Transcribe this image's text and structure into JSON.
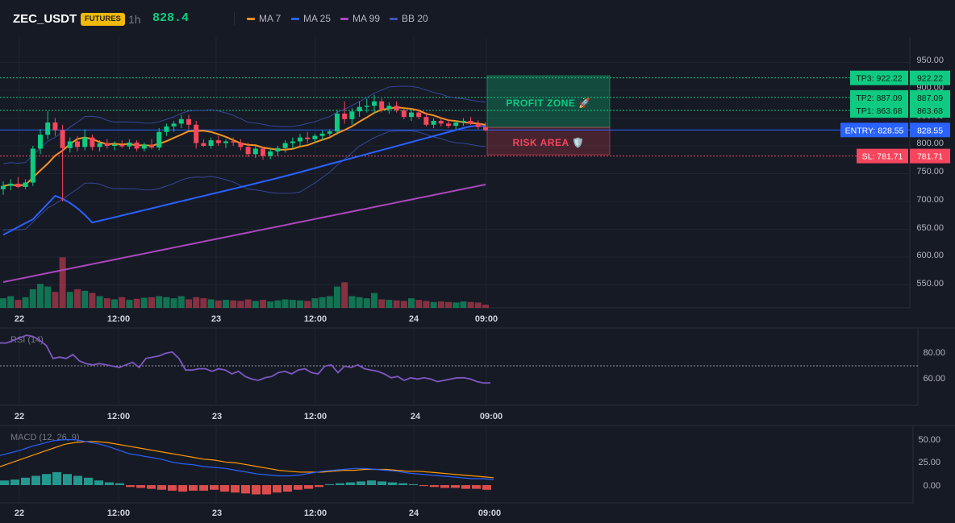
{
  "header": {
    "symbol": "ZEC_USDT",
    "badge": "FUTURES",
    "timeframe": "1h",
    "last_price": "828.4",
    "indicators": [
      {
        "label": "MA 7",
        "color": "#f7931a"
      },
      {
        "label": "MA 25",
        "color": "#2962ff"
      },
      {
        "label": "MA 99",
        "color": "#ab47bc"
      },
      {
        "label": "BB 20",
        "color": "#3f51b5"
      }
    ]
  },
  "zones": {
    "profit": "PROFIT ZONE 🚀",
    "risk": "RISK AREA 🛡️"
  },
  "levels": [
    {
      "label": "TP3: 922.22",
      "value": "922.22",
      "price": 922.22,
      "color": "#0ecb81",
      "kind": "tp"
    },
    {
      "label": "TP2: 887.09",
      "value": "887.09",
      "price": 887.09,
      "color": "#0ecb81",
      "kind": "tp"
    },
    {
      "label": "TP1: 863.68",
      "value": "863.68",
      "price": 863.68,
      "color": "#0ecb81",
      "kind": "tp"
    },
    {
      "label": "ENTRY: 828.55",
      "value": "828.55",
      "price": 828.55,
      "color": "#2962ff",
      "kind": "entry"
    },
    {
      "label": "SL: 781.71",
      "value": "781.71",
      "price": 781.71,
      "color": "#f6465d",
      "kind": "sl"
    }
  ],
  "price_axis": {
    "ticks": [
      "950.00",
      "900.00",
      "850.00",
      "800.00",
      "750.00",
      "700.00",
      "650.00",
      "600.00",
      "550.00"
    ]
  },
  "time_axis": {
    "labels": [
      "22",
      "12:00",
      "23",
      "12:00",
      "24",
      "09:00"
    ]
  },
  "rsi": {
    "title": "RSI (14)",
    "ticks": [
      "80.00",
      "60.00"
    ],
    "level": 70
  },
  "macd": {
    "title": "MACD (12, 26, 9)",
    "ticks": [
      "50.00",
      "25.00",
      "0.00"
    ]
  },
  "colors": {
    "up": "#0ecb81",
    "down": "#f6465d",
    "bg": "#161a25",
    "grid": "#1f2430"
  },
  "chart_data": {
    "type": "candlestick",
    "ohlc": [
      {
        "o": 722,
        "h": 736,
        "l": 712,
        "c": 728
      },
      {
        "o": 728,
        "h": 740,
        "l": 720,
        "c": 732
      },
      {
        "o": 732,
        "h": 744,
        "l": 724,
        "c": 726
      },
      {
        "o": 726,
        "h": 740,
        "l": 722,
        "c": 734
      },
      {
        "o": 734,
        "h": 800,
        "l": 728,
        "c": 795
      },
      {
        "o": 795,
        "h": 830,
        "l": 785,
        "c": 820
      },
      {
        "o": 820,
        "h": 862,
        "l": 812,
        "c": 842
      },
      {
        "o": 842,
        "h": 850,
        "l": 818,
        "c": 828
      },
      {
        "o": 828,
        "h": 838,
        "l": 700,
        "c": 796
      },
      {
        "o": 796,
        "h": 815,
        "l": 788,
        "c": 808
      },
      {
        "o": 808,
        "h": 818,
        "l": 790,
        "c": 798
      },
      {
        "o": 798,
        "h": 830,
        "l": 792,
        "c": 815
      },
      {
        "o": 815,
        "h": 820,
        "l": 792,
        "c": 798
      },
      {
        "o": 798,
        "h": 810,
        "l": 790,
        "c": 805
      },
      {
        "o": 805,
        "h": 812,
        "l": 795,
        "c": 800
      },
      {
        "o": 800,
        "h": 808,
        "l": 792,
        "c": 802
      },
      {
        "o": 802,
        "h": 810,
        "l": 796,
        "c": 799
      },
      {
        "o": 799,
        "h": 812,
        "l": 794,
        "c": 806
      },
      {
        "o": 806,
        "h": 810,
        "l": 790,
        "c": 795
      },
      {
        "o": 795,
        "h": 806,
        "l": 790,
        "c": 802
      },
      {
        "o": 802,
        "h": 812,
        "l": 794,
        "c": 797
      },
      {
        "o": 797,
        "h": 832,
        "l": 792,
        "c": 825
      },
      {
        "o": 825,
        "h": 840,
        "l": 818,
        "c": 835
      },
      {
        "o": 835,
        "h": 845,
        "l": 825,
        "c": 840
      },
      {
        "o": 840,
        "h": 856,
        "l": 832,
        "c": 848
      },
      {
        "o": 848,
        "h": 856,
        "l": 830,
        "c": 838
      },
      {
        "o": 838,
        "h": 845,
        "l": 795,
        "c": 805
      },
      {
        "o": 805,
        "h": 812,
        "l": 798,
        "c": 800
      },
      {
        "o": 800,
        "h": 815,
        "l": 795,
        "c": 810
      },
      {
        "o": 810,
        "h": 818,
        "l": 800,
        "c": 805
      },
      {
        "o": 805,
        "h": 812,
        "l": 796,
        "c": 808
      },
      {
        "o": 808,
        "h": 815,
        "l": 800,
        "c": 806
      },
      {
        "o": 806,
        "h": 812,
        "l": 792,
        "c": 798
      },
      {
        "o": 798,
        "h": 806,
        "l": 780,
        "c": 785
      },
      {
        "o": 785,
        "h": 800,
        "l": 778,
        "c": 795
      },
      {
        "o": 795,
        "h": 798,
        "l": 775,
        "c": 782
      },
      {
        "o": 782,
        "h": 795,
        "l": 776,
        "c": 790
      },
      {
        "o": 790,
        "h": 800,
        "l": 782,
        "c": 796
      },
      {
        "o": 796,
        "h": 810,
        "l": 788,
        "c": 805
      },
      {
        "o": 805,
        "h": 815,
        "l": 795,
        "c": 808
      },
      {
        "o": 808,
        "h": 822,
        "l": 800,
        "c": 815
      },
      {
        "o": 815,
        "h": 825,
        "l": 805,
        "c": 812
      },
      {
        "o": 812,
        "h": 822,
        "l": 805,
        "c": 818
      },
      {
        "o": 818,
        "h": 828,
        "l": 810,
        "c": 822
      },
      {
        "o": 822,
        "h": 830,
        "l": 815,
        "c": 826
      },
      {
        "o": 826,
        "h": 865,
        "l": 820,
        "c": 858
      },
      {
        "o": 858,
        "h": 880,
        "l": 840,
        "c": 848
      },
      {
        "o": 848,
        "h": 868,
        "l": 838,
        "c": 862
      },
      {
        "o": 862,
        "h": 880,
        "l": 852,
        "c": 870
      },
      {
        "o": 870,
        "h": 885,
        "l": 860,
        "c": 872
      },
      {
        "o": 872,
        "h": 892,
        "l": 858,
        "c": 880
      },
      {
        "o": 880,
        "h": 885,
        "l": 860,
        "c": 866
      },
      {
        "o": 866,
        "h": 878,
        "l": 858,
        "c": 872
      },
      {
        "o": 872,
        "h": 880,
        "l": 860,
        "c": 864
      },
      {
        "o": 864,
        "h": 870,
        "l": 848,
        "c": 852
      },
      {
        "o": 852,
        "h": 868,
        "l": 845,
        "c": 860
      },
      {
        "o": 860,
        "h": 866,
        "l": 848,
        "c": 852
      },
      {
        "o": 852,
        "h": 860,
        "l": 835,
        "c": 838
      },
      {
        "o": 838,
        "h": 850,
        "l": 832,
        "c": 845
      },
      {
        "o": 845,
        "h": 852,
        "l": 835,
        "c": 840
      },
      {
        "o": 840,
        "h": 848,
        "l": 832,
        "c": 836
      },
      {
        "o": 836,
        "h": 846,
        "l": 830,
        "c": 842
      },
      {
        "o": 842,
        "h": 850,
        "l": 836,
        "c": 845
      },
      {
        "o": 845,
        "h": 852,
        "l": 838,
        "c": 840
      },
      {
        "o": 840,
        "h": 846,
        "l": 830,
        "c": 834
      },
      {
        "o": 834,
        "h": 842,
        "l": 826,
        "c": 828
      }
    ],
    "volume_ratio": [
      0.18,
      0.22,
      0.15,
      0.2,
      0.35,
      0.45,
      0.4,
      0.3,
      0.95,
      0.3,
      0.35,
      0.32,
      0.28,
      0.22,
      0.18,
      0.16,
      0.2,
      0.15,
      0.17,
      0.19,
      0.2,
      0.22,
      0.2,
      0.18,
      0.22,
      0.16,
      0.2,
      0.18,
      0.16,
      0.14,
      0.15,
      0.14,
      0.13,
      0.16,
      0.13,
      0.15,
      0.12,
      0.14,
      0.16,
      0.15,
      0.14,
      0.13,
      0.18,
      0.2,
      0.22,
      0.4,
      0.48,
      0.22,
      0.2,
      0.18,
      0.28,
      0.16,
      0.15,
      0.14,
      0.13,
      0.18,
      0.15,
      0.13,
      0.11,
      0.12,
      0.11,
      0.1,
      0.12,
      0.11,
      0.1,
      0.06
    ],
    "rsi": [
      84,
      84,
      86,
      88,
      90,
      89,
      86,
      82,
      72,
      73,
      72,
      75,
      70,
      68,
      67,
      68,
      67,
      66,
      65,
      67,
      69,
      65,
      72,
      73,
      74,
      76,
      77,
      72,
      63,
      63,
      64,
      64,
      62,
      64,
      63,
      60,
      62,
      58,
      56,
      55,
      57,
      58,
      61,
      62,
      60,
      63,
      64,
      61,
      60,
      66,
      67,
      61,
      66,
      65,
      67,
      64,
      63,
      62,
      60,
      57,
      58,
      55,
      57,
      56,
      57,
      56,
      54,
      55,
      56,
      57,
      57,
      56,
      54,
      53,
      53
    ],
    "macd": [
      32,
      35,
      38,
      42,
      45,
      48,
      49,
      49,
      47,
      45,
      42,
      38,
      34,
      32,
      30,
      28,
      25,
      23,
      22,
      20,
      19,
      18,
      16,
      14,
      12,
      11,
      10,
      10,
      11,
      13,
      15,
      16,
      17,
      18,
      18,
      17,
      16,
      15,
      13,
      12,
      11,
      10,
      9,
      8,
      7,
      7,
      6
    ],
    "macd_signal": [
      20,
      24,
      28,
      32,
      36,
      40,
      44,
      46,
      47,
      47,
      46,
      44,
      42,
      40,
      38,
      36,
      34,
      32,
      30,
      28,
      27,
      25,
      24,
      22,
      20,
      18,
      16,
      15,
      14,
      14,
      14,
      15,
      16,
      16,
      17,
      17,
      17,
      16,
      15,
      15,
      14,
      13,
      12,
      11,
      10,
      9,
      8
    ],
    "macd_hist": [
      5,
      6,
      8,
      10,
      12,
      14,
      12,
      10,
      8,
      5,
      3,
      2,
      -2,
      -3,
      -4,
      -5,
      -6,
      -7,
      -6,
      -6,
      -5,
      -7,
      -8,
      -9,
      -10,
      -10,
      -8,
      -7,
      -5,
      -4,
      -2,
      1,
      2,
      3,
      4,
      5,
      4,
      3,
      2,
      1,
      -1,
      -2,
      -3,
      -3,
      -4,
      -4,
      -5
    ]
  }
}
